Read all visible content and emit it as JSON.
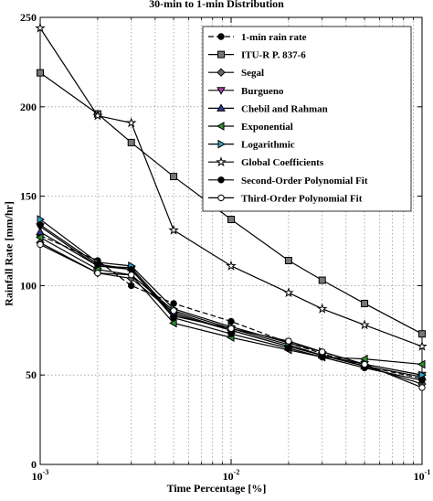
{
  "chart_data": {
    "type": "line",
    "title": "30-min to 1-min Distribution",
    "xlabel": "Time Percentage [%]",
    "ylabel": "Rainfall Rate [mm/hr]",
    "xscale": "log",
    "xlim": [
      0.001,
      0.1
    ],
    "ylim": [
      0,
      250
    ],
    "yticks": [
      0,
      50,
      100,
      150,
      200,
      250
    ],
    "xticks": [
      {
        "base": "10",
        "exp": "-3",
        "value": 0.001
      },
      {
        "base": "10",
        "exp": "-2",
        "value": 0.01
      },
      {
        "base": "10",
        "exp": "-1",
        "value": 0.1
      }
    ],
    "grid": "on",
    "legend_position": "top-right",
    "x": [
      0.001,
      0.002,
      0.003,
      0.005,
      0.01,
      0.02,
      0.03,
      0.05,
      0.1
    ],
    "series": [
      {
        "name": "1-min rain rate",
        "marker": "circle-filled",
        "dash": "dashed",
        "color": "#000000",
        "values": [
          128,
          114,
          100,
          90,
          80,
          68,
          62,
          55,
          48
        ]
      },
      {
        "name": "ITU-R P. 837-6",
        "marker": "square",
        "dash": "solid",
        "color": "#000000",
        "values": [
          219,
          196,
          180,
          161,
          137,
          114,
          103,
          90,
          73
        ]
      },
      {
        "name": "Segal",
        "marker": "diamond",
        "dash": "solid",
        "color": "#000000",
        "values": [
          124,
          107,
          104,
          85,
          75,
          66,
          61,
          55,
          45
        ]
      },
      {
        "name": "Burgueno",
        "marker": "triangle-down",
        "dash": "solid",
        "color": "#000000",
        "values": [
          133,
          111,
          109,
          83,
          76,
          67,
          61,
          56,
          50
        ]
      },
      {
        "name": "Chebil and Rahman",
        "marker": "triangle-up",
        "dash": "solid",
        "color": "#000000",
        "values": [
          130,
          111,
          110,
          84,
          75,
          66,
          61,
          55,
          49
        ]
      },
      {
        "name": "Exponential",
        "marker": "triangle-left",
        "dash": "solid",
        "color": "#000000",
        "values": [
          127,
          109,
          106,
          79,
          71,
          64,
          60,
          59,
          56
        ]
      },
      {
        "name": "Logarithmic",
        "marker": "triangle-right",
        "dash": "solid",
        "color": "#000000",
        "values": [
          137,
          113,
          111,
          87,
          77,
          68,
          63,
          56,
          50
        ]
      },
      {
        "name": "Global Coefficients",
        "marker": "star",
        "dash": "solid",
        "color": "#000000",
        "values": [
          244,
          195,
          191,
          131,
          111,
          96,
          87,
          78,
          66
        ]
      },
      {
        "name": "Second-Order Polynomial Fit",
        "marker": "circle-filled",
        "dash": "solid",
        "color": "#000000",
        "values": [
          134,
          112,
          109,
          82,
          73,
          65,
          60,
          54,
          47
        ]
      },
      {
        "name": "Third-Order Polynomial Fit",
        "marker": "circle-open",
        "dash": "solid",
        "color": "#000000",
        "values": [
          123,
          107,
          106,
          86,
          76,
          69,
          63,
          56,
          43
        ]
      }
    ]
  }
}
